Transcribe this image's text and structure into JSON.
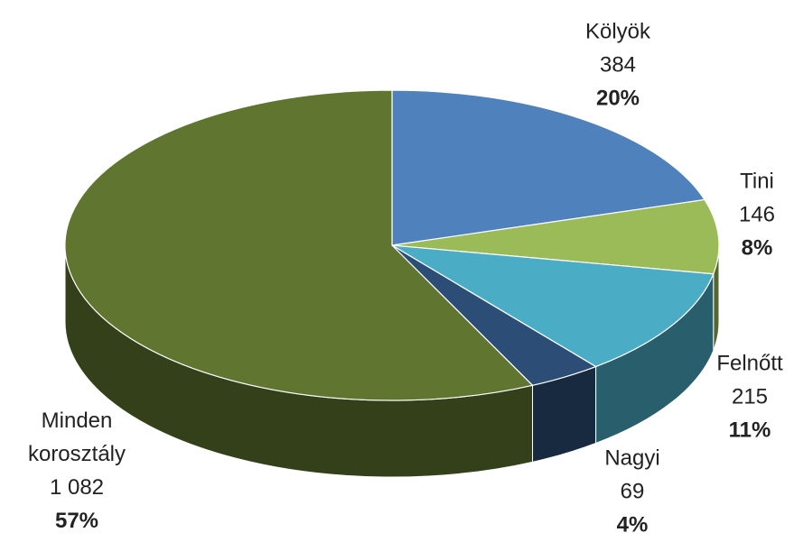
{
  "chart_data": {
    "type": "pie3d",
    "categories": [
      "Kölyök",
      "Tini",
      "Felnőtt",
      "Nagyi",
      "Minden korosztály"
    ],
    "values": [
      384,
      146,
      215,
      69,
      1082
    ],
    "value_labels": [
      "384",
      "146",
      "215",
      "69",
      "1 082"
    ],
    "percents": [
      20,
      8,
      11,
      4,
      57
    ],
    "percent_labels": [
      "20%",
      "8%",
      "11%",
      "4%",
      "57%"
    ],
    "colors": [
      "#4f81bd",
      "#9bbb59",
      "#4bacc6",
      "#2c4d75",
      "#5f7530"
    ]
  }
}
